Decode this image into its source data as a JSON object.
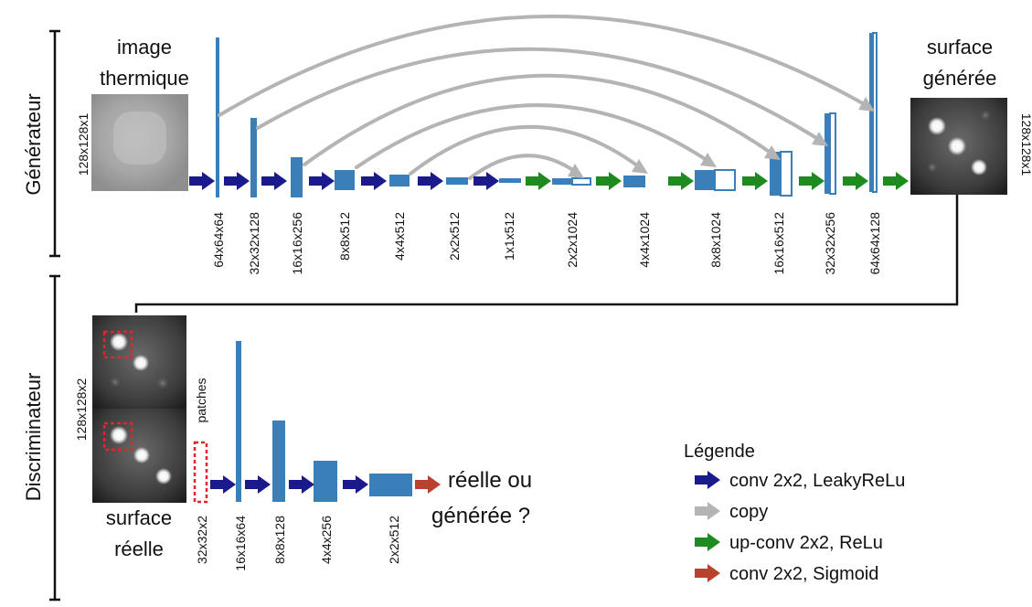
{
  "generator": {
    "section_label": "Générateur",
    "input_title": [
      "image",
      "thermique"
    ],
    "input_size": "128x128x1",
    "output_title": [
      "surface",
      "générée"
    ],
    "output_size": "128x128x1",
    "encoder_dims": [
      "64x64x64",
      "32x32x128",
      "16x16x256",
      "8x8x512",
      "4x4x512",
      "2x2x512",
      "1x1x512"
    ],
    "decoder_dims": [
      "2x2x1024",
      "4x4x1024",
      "8x8x1024",
      "16x16x512",
      "32x32x256",
      "64x64x128"
    ]
  },
  "discriminator": {
    "section_label": "Discriminateur",
    "input_size": "128x128x2",
    "patches_label": "patches",
    "input_title": [
      "surface",
      "réelle"
    ],
    "dims": [
      "32x32x2",
      "16x16x64",
      "8x8x128",
      "4x4x256",
      "2x2x512"
    ],
    "output_label": [
      "réelle ou",
      "générée ?"
    ]
  },
  "legend": {
    "title": "Légende",
    "items": [
      {
        "label": "conv 2x2, LeakyReLu",
        "icon": "arrow",
        "color": "#1a1a8c"
      },
      {
        "label": "copy",
        "icon": "arrow",
        "color": "#b4b4b4"
      },
      {
        "label": "up-conv 2x2, ReLu",
        "icon": "arrow",
        "color": "#1f8a1f"
      },
      {
        "label": "conv 2x2, Sigmoid",
        "icon": "arrow",
        "color": "#b8422e"
      }
    ]
  },
  "colors": {
    "block": "#3a7fb8",
    "conv_arrow": "#1a1a8c",
    "copy_arrow": "#b4b4b4",
    "upconv_arrow": "#1f8a1f",
    "sigmoid_arrow": "#b8422e",
    "patch_box": "#e0262a"
  }
}
